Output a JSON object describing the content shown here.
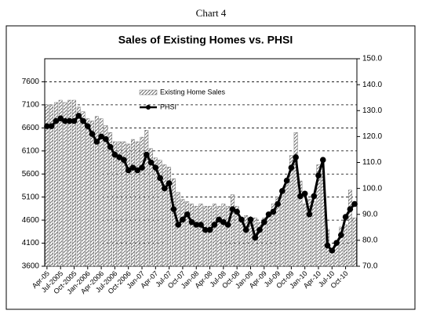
{
  "header": "Chart 4",
  "chart_data": {
    "type": "bar-line",
    "title": "Sales of Existing Homes vs. PHSI",
    "categories": [
      "Apr-05",
      null,
      null,
      "Jul-2005",
      null,
      null,
      "Oct-2005",
      null,
      null,
      "Jan-2006",
      null,
      null,
      "Apr-2006",
      null,
      null,
      "Jul-2006",
      null,
      null,
      "Oct-2006",
      null,
      null,
      "Jan-07",
      null,
      null,
      "Apr-07",
      null,
      null,
      "Jul-07",
      null,
      null,
      "Oct-07",
      null,
      null,
      "Jan-08",
      null,
      null,
      "Apr-08",
      null,
      null,
      "Jul-08",
      null,
      null,
      "Oct-08",
      null,
      null,
      "Jan-09",
      null,
      null,
      "Apr-09",
      null,
      null,
      "Jul-09",
      null,
      null,
      "Oct-09",
      null,
      null,
      "Jan-10",
      null,
      null,
      "Apr-10",
      null,
      null,
      "Jul-10",
      null,
      null,
      "Oct-10",
      null,
      null
    ],
    "series": [
      {
        "name": "Existing Home Sales",
        "kind": "bar",
        "color": "#555555",
        "values": [
          7100,
          7100,
          7150,
          7200,
          7150,
          7200,
          7200,
          7050,
          6950,
          6800,
          6750,
          6850,
          6800,
          6650,
          6500,
          6300,
          6300,
          6300,
          6250,
          6350,
          6300,
          6400,
          6550,
          6150,
          5950,
          5900,
          5800,
          5750,
          5500,
          5200,
          5050,
          5000,
          4950,
          4900,
          4950,
          4900,
          4900,
          4950,
          4900,
          4950,
          4900,
          5150,
          4900,
          4550,
          4700,
          4500,
          4650,
          4550,
          4650,
          4750,
          4950,
          5100,
          5200,
          5500,
          6000,
          6500,
          5450,
          4950,
          5050,
          5000,
          5800,
          5650,
          4400,
          3850,
          4100,
          4450,
          4500,
          5250,
          4650
        ]
      },
      {
        "name": "PHSI",
        "kind": "line",
        "axis": "y2",
        "color": "#000000",
        "values": [
          124,
          124,
          126,
          127,
          126,
          126,
          126,
          128,
          126,
          124,
          121,
          118,
          120,
          119,
          116,
          113,
          112,
          111,
          107,
          108,
          107,
          108,
          113,
          110,
          108,
          104,
          100,
          102,
          92,
          86,
          88,
          90,
          87,
          86,
          86,
          84,
          84,
          86,
          88,
          87,
          86,
          92,
          91,
          88,
          84,
          88,
          81,
          84,
          87,
          90,
          91,
          94,
          99,
          103,
          108,
          112,
          97,
          98,
          90,
          97,
          105,
          111,
          78,
          76,
          79,
          82,
          89,
          92,
          94
        ]
      }
    ],
    "ylim": [
      3600,
      8100
    ],
    "yticks": [
      3600,
      4100,
      4600,
      5100,
      5600,
      6100,
      6600,
      7100,
      7600
    ],
    "y2lim": [
      70,
      150
    ],
    "y2ticks": [
      {
        "value": 70,
        "label": "70.0"
      },
      {
        "value": 80,
        "label": "80.0"
      },
      {
        "value": 90,
        "label": "90.0"
      },
      {
        "value": 100,
        "label": "100.0"
      },
      {
        "value": 110,
        "label": "110.0"
      },
      {
        "value": 120,
        "label": "120.0"
      },
      {
        "value": 130,
        "label": "130.0"
      },
      {
        "value": 140,
        "label": "140.0"
      },
      {
        "value": 150,
        "label": "150.0"
      }
    ],
    "grid": true,
    "legend": "upper center"
  }
}
